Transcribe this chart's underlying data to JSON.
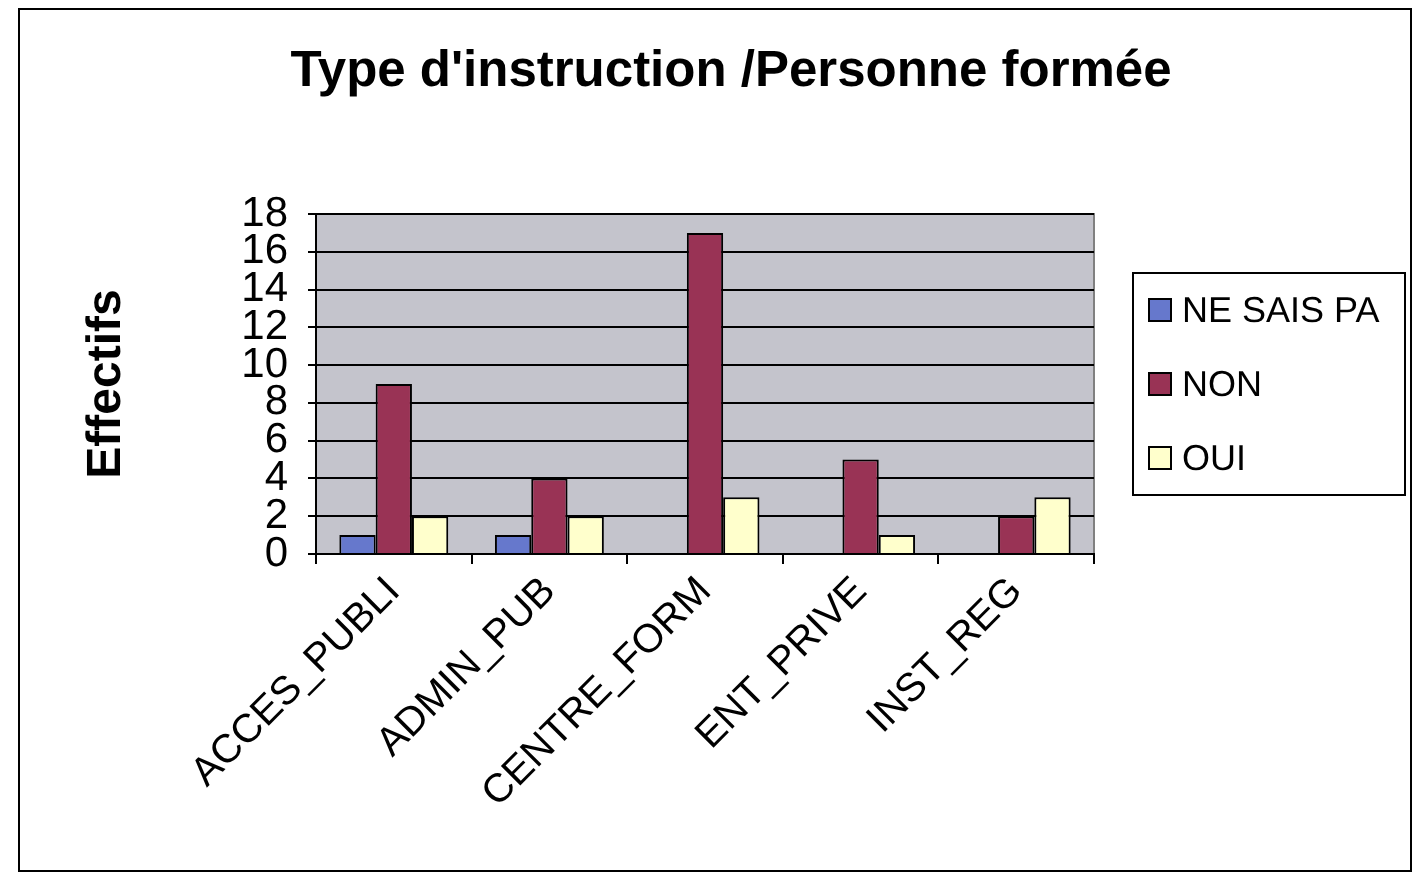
{
  "chart_data": {
    "type": "bar",
    "title": "Type d'instruction /Personne formée",
    "ylabel": "Effectifs",
    "categories": [
      "ACCES_PUBLI",
      "ADMIN_PUB",
      "CENTRE_FORM",
      "ENT_PRIVE",
      "INST_REG"
    ],
    "series": [
      {
        "name": "NE SAIS PA",
        "color": "#6678cc",
        "values": [
          1,
          1,
          null,
          null,
          null
        ]
      },
      {
        "name": "NON",
        "color": "#993355",
        "values": [
          9,
          4,
          17,
          5,
          2
        ]
      },
      {
        "name": "OUI",
        "color": "#ffffcc",
        "values": [
          2,
          2,
          3,
          1,
          3
        ]
      }
    ],
    "ylim": [
      0,
      18
    ],
    "yticks": [
      0,
      2,
      4,
      6,
      8,
      10,
      12,
      14,
      16,
      18
    ],
    "grid": "y",
    "legend": "right"
  }
}
